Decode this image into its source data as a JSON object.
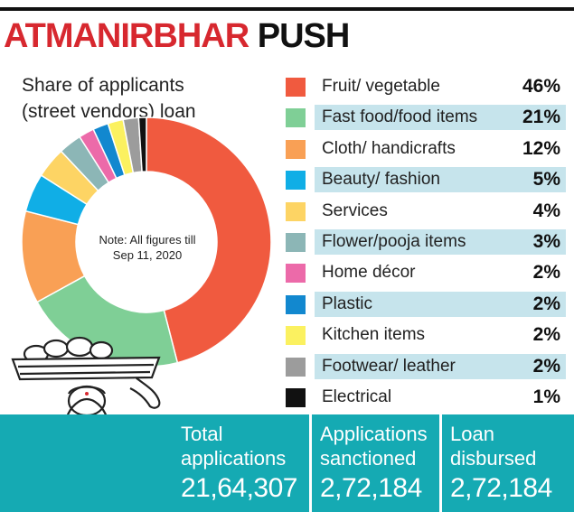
{
  "headline": {
    "part1": "ATMANIRBHAR",
    "part2": "PUSH"
  },
  "chart_data": {
    "type": "pie",
    "title": "Share of applicants (street vendors) loan",
    "title_line1": "Share of applicants",
    "title_line2": "(street vendors) loan",
    "note": "Note: All figures till Sep 11, 2020",
    "categories": [
      "Fruit/ vegetable",
      "Fast food/food items",
      "Cloth/ handicrafts",
      "Beauty/ fashion",
      "Services",
      "Flower/pooja items",
      "Home décor",
      "Plastic",
      "Kitchen items",
      "Footwear/ leather",
      "Electrical"
    ],
    "values": [
      46,
      21,
      12,
      5,
      4,
      3,
      2,
      2,
      2,
      2,
      1
    ],
    "value_labels": [
      "46%",
      "21%",
      "12%",
      "5%",
      "4%",
      "3%",
      "2%",
      "2%",
      "2%",
      "2%",
      "1%"
    ],
    "colors": [
      "#f05a3f",
      "#7fcf96",
      "#f9a055",
      "#10aee6",
      "#fdd464",
      "#8cb6b6",
      "#ec6aa9",
      "#1288cf",
      "#fbf160",
      "#9c9c9c",
      "#111111"
    ],
    "legend_placement": "right",
    "donut": true
  },
  "stats": [
    {
      "label": "Total applications",
      "value": "21,64,307"
    },
    {
      "label": "Applications sanctioned",
      "value": "2,72,184"
    },
    {
      "label": "Loan disbursed",
      "value": "2,72,184"
    }
  ]
}
